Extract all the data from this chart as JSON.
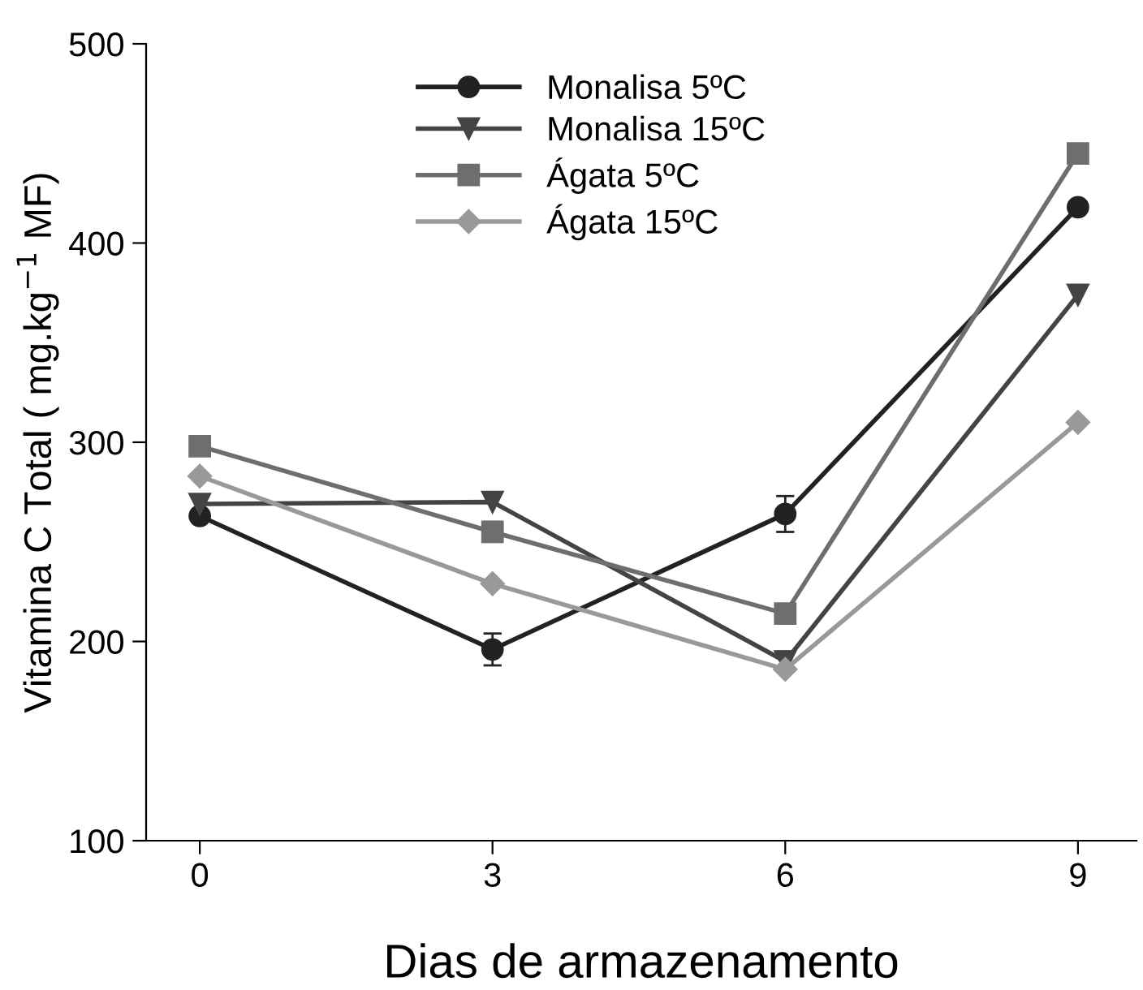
{
  "chart_data": {
    "type": "line",
    "xlabel": "Dias de armazenamento",
    "ylabel": "Vitamina C Total ( mg.kg$^{−1}$ MF)",
    "x": [
      0,
      3,
      6,
      9
    ],
    "xlim": [
      -0.55,
      9.6
    ],
    "xticks": [
      0,
      3,
      6,
      9
    ],
    "ylim": [
      100,
      500
    ],
    "yticks": [
      100,
      200,
      300,
      400,
      500
    ],
    "grid": false,
    "legend": "top",
    "line_style": "solid",
    "series": [
      {
        "name": "Monalisa 5ºC",
        "color": "#222222",
        "marker": "circle",
        "values": [
          263,
          196,
          264,
          418
        ],
        "errors": [
          null,
          8,
          9,
          null
        ]
      },
      {
        "name": "Monalisa 15ºC",
        "color": "#444444",
        "marker": "triangle",
        "values": [
          269,
          270,
          190,
          374
        ],
        "errors": [
          null,
          null,
          5,
          null
        ]
      },
      {
        "name": "Ágata 5ºC",
        "color": "#6e6e6e",
        "marker": "square",
        "values": [
          298,
          255,
          214,
          445
        ],
        "errors": [
          null,
          5,
          null,
          null
        ]
      },
      {
        "name": "Ágata 15ºC",
        "color": "#999999",
        "marker": "diamond",
        "values": [
          283,
          229,
          186,
          310
        ]
      }
    ]
  }
}
